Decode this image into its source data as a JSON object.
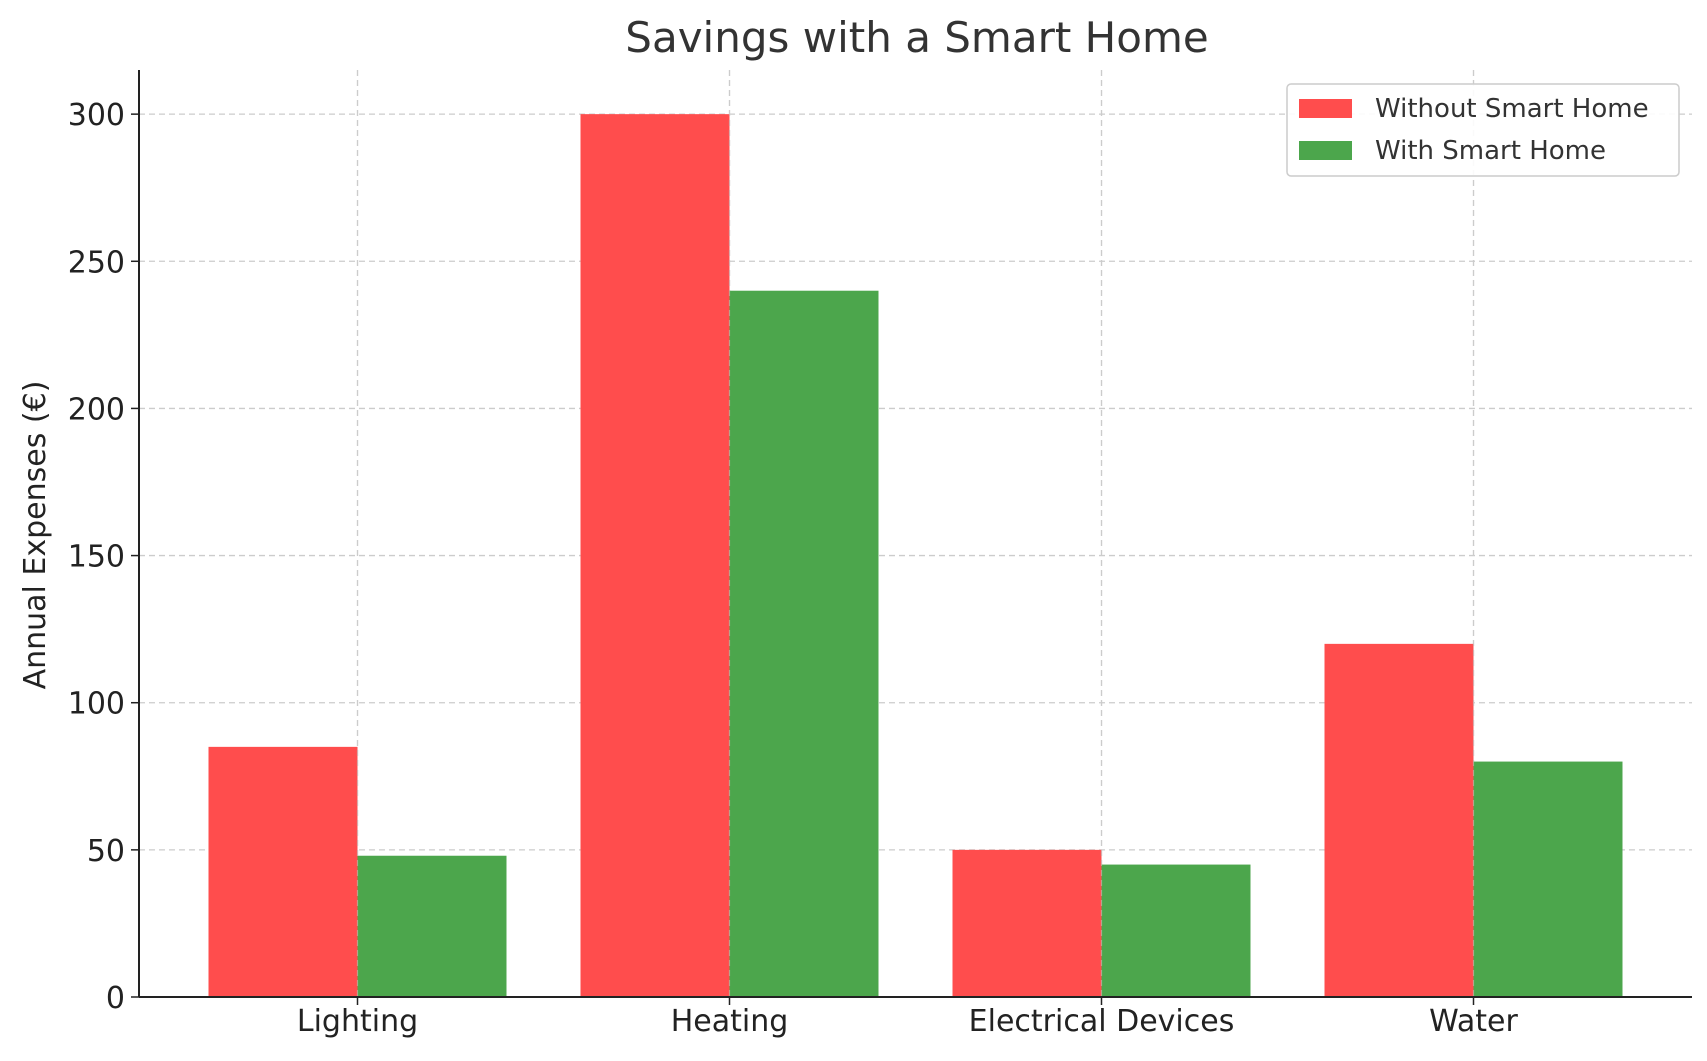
{
  "chart_data": {
    "type": "bar",
    "title": "Savings with a Smart Home",
    "xlabel": "",
    "ylabel": "Annual Expenses (€)",
    "categories": [
      "Lighting",
      "Heating",
      "Electrical Devices",
      "Water"
    ],
    "series": [
      {
        "name": "Without Smart Home",
        "values": [
          85,
          300,
          50,
          120
        ],
        "color": "#ff4d4d"
      },
      {
        "name": "With Smart Home",
        "values": [
          48,
          240,
          45,
          80
        ],
        "color": "#4ca64c"
      }
    ],
    "ylim": [
      0,
      315
    ],
    "yticks": [
      0,
      50,
      100,
      150,
      200,
      250,
      300
    ],
    "grid": true,
    "legend_position": "top-right"
  }
}
